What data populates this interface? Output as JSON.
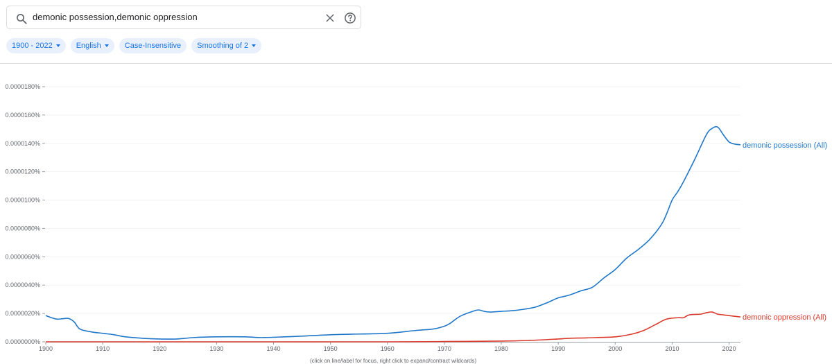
{
  "search": {
    "query": "demonic possession,demonic oppression",
    "icon": "search-icon",
    "clear_icon": "close-icon",
    "help_icon": "help-icon"
  },
  "filters": [
    {
      "label": "1900 - 2022",
      "dropdown": true
    },
    {
      "label": "English",
      "dropdown": true
    },
    {
      "label": "Case-Insensitive",
      "dropdown": false
    },
    {
      "label": "Smoothing of 2",
      "dropdown": true
    }
  ],
  "footnote": "(click on line/label for focus, right click to expand/contract wildcards)",
  "chart_data": {
    "type": "line",
    "xlim": [
      1900,
      2022
    ],
    "ylim": [
      0,
      1.8e-07
    ],
    "x_ticks": [
      1900,
      1910,
      1920,
      1930,
      1940,
      1950,
      1960,
      1970,
      1980,
      1990,
      2000,
      2010,
      2020
    ],
    "y_ticks": [
      {
        "value": 0.0,
        "label": "0.0000000%"
      },
      {
        "value": 2e-08,
        "label": "0.0000020%"
      },
      {
        "value": 4e-08,
        "label": "0.0000040%"
      },
      {
        "value": 6e-08,
        "label": "0.0000060%"
      },
      {
        "value": 8e-08,
        "label": "0.0000080%"
      },
      {
        "value": 1e-07,
        "label": "0.0000100%"
      },
      {
        "value": 1.2e-07,
        "label": "0.0000120%"
      },
      {
        "value": 1.4e-07,
        "label": "0.0000140%"
      },
      {
        "value": 1.6e-07,
        "label": "0.0000160%"
      },
      {
        "value": 1.8e-07,
        "label": "0.0000180%"
      }
    ],
    "grid": true,
    "legend": "line-end labels",
    "series": [
      {
        "name": "demonic possession (All)",
        "color": "#1f77c9",
        "x": [
          1900,
          1901,
          1902,
          1903,
          1904,
          1905,
          1906,
          1908,
          1910,
          1912,
          1914,
          1917,
          1920,
          1923,
          1926,
          1930,
          1935,
          1938,
          1942,
          1945,
          1950,
          1955,
          1960,
          1965,
          1968,
          1970,
          1971,
          1972,
          1973,
          1975,
          1976,
          1977,
          1978,
          1980,
          1982,
          1984,
          1986,
          1988,
          1990,
          1992,
          1994,
          1996,
          1998,
          2000,
          2002,
          2004,
          2006,
          2008,
          2009,
          2010,
          2011,
          2012,
          2014,
          2016,
          2017,
          2018,
          2019,
          2020,
          2021,
          2022
        ],
        "values": [
          1.85e-08,
          1.7e-08,
          1.6e-08,
          1.63e-08,
          1.65e-08,
          1.4e-08,
          9e-09,
          7e-09,
          6e-09,
          5e-09,
          3.5e-09,
          2.5e-09,
          2e-09,
          2e-09,
          3e-09,
          3.5e-09,
          3.5e-09,
          3e-09,
          3.5e-09,
          4e-09,
          5e-09,
          5.5e-09,
          6e-09,
          8e-09,
          9e-09,
          1.1e-08,
          1.3e-08,
          1.6e-08,
          1.85e-08,
          2.15e-08,
          2.25e-08,
          2.15e-08,
          2.1e-08,
          2.15e-08,
          2.2e-08,
          2.3e-08,
          2.45e-08,
          2.75e-08,
          3.1e-08,
          3.3e-08,
          3.6e-08,
          3.85e-08,
          4.5e-08,
          5.1e-08,
          5.9e-08,
          6.5e-08,
          7.2e-08,
          8.2e-08,
          9e-08,
          1e-07,
          1.06e-07,
          1.13e-07,
          1.29e-07,
          1.46e-07,
          1.505e-07,
          1.515e-07,
          1.46e-07,
          1.41e-07,
          1.395e-07,
          1.39e-07
        ]
      },
      {
        "name": "demonic oppression (All)",
        "color": "#d93a2b",
        "x": [
          1900,
          1920,
          1940,
          1960,
          1970,
          1980,
          1985,
          1990,
          1992,
          1995,
          2000,
          2003,
          2005,
          2007,
          2009,
          2011,
          2012,
          2013,
          2015,
          2016,
          2017,
          2018,
          2019,
          2020,
          2021,
          2022
        ],
        "values": [
          0.0,
          0.0,
          0.0,
          0.0,
          2e-10,
          5e-10,
          1e-09,
          2e-09,
          2.5e-09,
          2.8e-09,
          3.5e-09,
          5.5e-09,
          8e-09,
          1.2e-08,
          1.6e-08,
          1.7e-08,
          1.7e-08,
          1.9e-08,
          1.95e-08,
          2.05e-08,
          2.1e-08,
          1.95e-08,
          1.9e-08,
          1.85e-08,
          1.8e-08,
          1.75e-08
        ]
      }
    ]
  }
}
